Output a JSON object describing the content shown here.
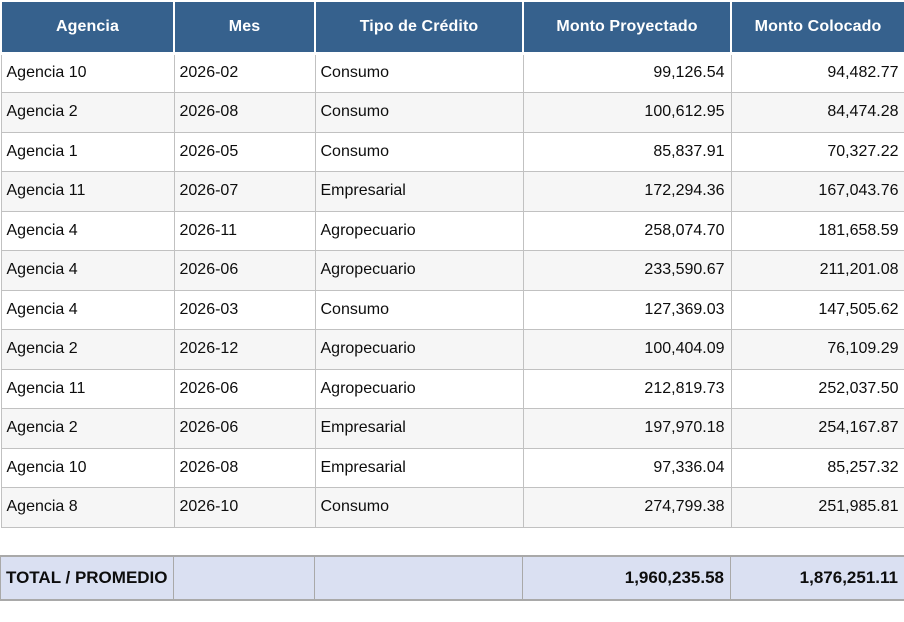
{
  "table": {
    "columns": [
      {
        "key": "agencia",
        "label": "Agencia"
      },
      {
        "key": "mes",
        "label": "Mes"
      },
      {
        "key": "tipo-de-credito",
        "label": "Tipo de Crédito"
      },
      {
        "key": "monto-proyectado",
        "label": "Monto Proyectado"
      },
      {
        "key": "monto-colocado",
        "label": "Monto Colocado"
      }
    ],
    "rows": [
      [
        "Agencia 10",
        "2026-02",
        "Consumo",
        "99,126.54",
        "94,482.77"
      ],
      [
        "Agencia 2",
        "2026-08",
        "Consumo",
        "100,612.95",
        "84,474.28"
      ],
      [
        "Agencia 1",
        "2026-05",
        "Consumo",
        "85,837.91",
        "70,327.22"
      ],
      [
        "Agencia 11",
        "2026-07",
        "Empresarial",
        "172,294.36",
        "167,043.76"
      ],
      [
        "Agencia 4",
        "2026-11",
        "Agropecuario",
        "258,074.70",
        "181,658.59"
      ],
      [
        "Agencia 4",
        "2026-06",
        "Agropecuario",
        "233,590.67",
        "211,201.08"
      ],
      [
        "Agencia 4",
        "2026-03",
        "Consumo",
        "127,369.03",
        "147,505.62"
      ],
      [
        "Agencia 2",
        "2026-12",
        "Agropecuario",
        "100,404.09",
        "76,109.29"
      ],
      [
        "Agencia 11",
        "2026-06",
        "Agropecuario",
        "212,819.73",
        "252,037.50"
      ],
      [
        "Agencia 2",
        "2026-06",
        "Empresarial",
        "197,970.18",
        "254,167.87"
      ],
      [
        "Agencia 10",
        "2026-08",
        "Empresarial",
        "97,336.04",
        "85,257.32"
      ],
      [
        "Agencia 8",
        "2026-10",
        "Consumo",
        "274,799.38",
        "251,985.81"
      ]
    ]
  },
  "summary": {
    "label": "TOTAL / PROMEDIO",
    "monto_proyectado": "1,960,235.58",
    "monto_colocado": "1,876,251.11"
  },
  "colors": {
    "header_bg": "#36618d",
    "header_text": "#ffffff",
    "row_stripe": "#f6f6f6",
    "grid_line": "#c1c1c1",
    "summary_bg": "#dae0f2",
    "summary_border": "#a9a9a9"
  }
}
